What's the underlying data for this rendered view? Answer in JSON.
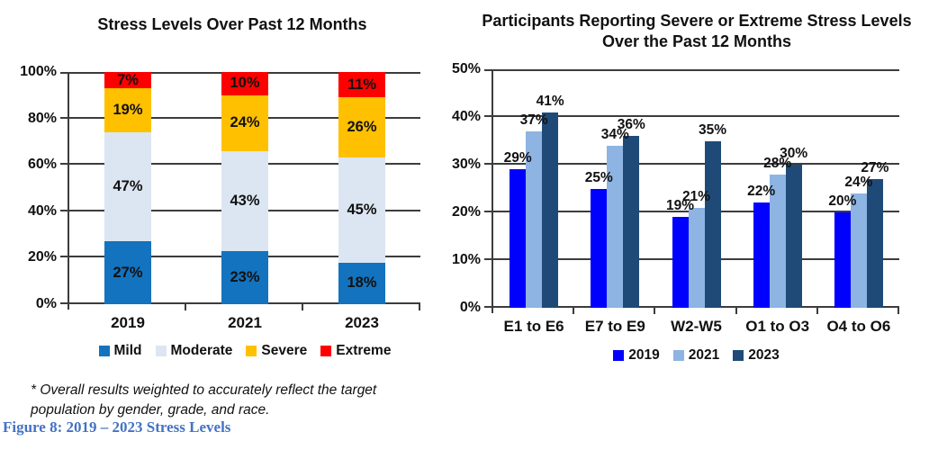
{
  "figure": {
    "footnote_line1": "* Overall results weighted to accurately reflect the target",
    "footnote_line2": "population by gender, grade, and race.",
    "caption": "Figure 8: 2019 – 2023 Stress Levels",
    "caption_color": "#4472C4"
  },
  "chart_data": [
    {
      "type": "bar",
      "stacked": true,
      "title": "Stress Levels Over Past 12 Months",
      "categories": [
        "2019",
        "2021",
        "2023"
      ],
      "series": [
        {
          "name": "Mild",
          "color": "#1373BE",
          "values": [
            27,
            23,
            18
          ]
        },
        {
          "name": "Moderate",
          "color": "#DCE6F2",
          "values": [
            47,
            43,
            45
          ]
        },
        {
          "name": "Severe",
          "color": "#FFC000",
          "values": [
            19,
            24,
            26
          ]
        },
        {
          "name": "Extreme",
          "color": "#FE0000",
          "values": [
            7,
            10,
            11
          ]
        }
      ],
      "ylim": [
        0,
        100
      ],
      "yticks": [
        "0%",
        "20%",
        "40%",
        "60%",
        "80%",
        "100%"
      ],
      "grid": true,
      "legend_position": "bottom",
      "data_label_suffix": "%"
    },
    {
      "type": "bar",
      "stacked": false,
      "title": "Participants Reporting Severe or Extreme Stress Levels Over the Past 12 Months",
      "categories": [
        "E1 to E6",
        "E7 to E9",
        "W2-W5",
        "O1 to O3",
        "O4 to O6"
      ],
      "series": [
        {
          "name": "2019",
          "color": "#0000FE",
          "values": [
            29,
            25,
            19,
            22,
            20
          ]
        },
        {
          "name": "2021",
          "color": "#8DB4E2",
          "values": [
            37,
            34,
            21,
            28,
            24
          ]
        },
        {
          "name": "2023",
          "color": "#1F4A77",
          "values": [
            41,
            36,
            35,
            30,
            27
          ]
        }
      ],
      "ylim": [
        0,
        50
      ],
      "yticks": [
        "0%",
        "10%",
        "20%",
        "30%",
        "40%",
        "50%"
      ],
      "grid": true,
      "legend_position": "bottom",
      "data_label_suffix": "%"
    }
  ]
}
